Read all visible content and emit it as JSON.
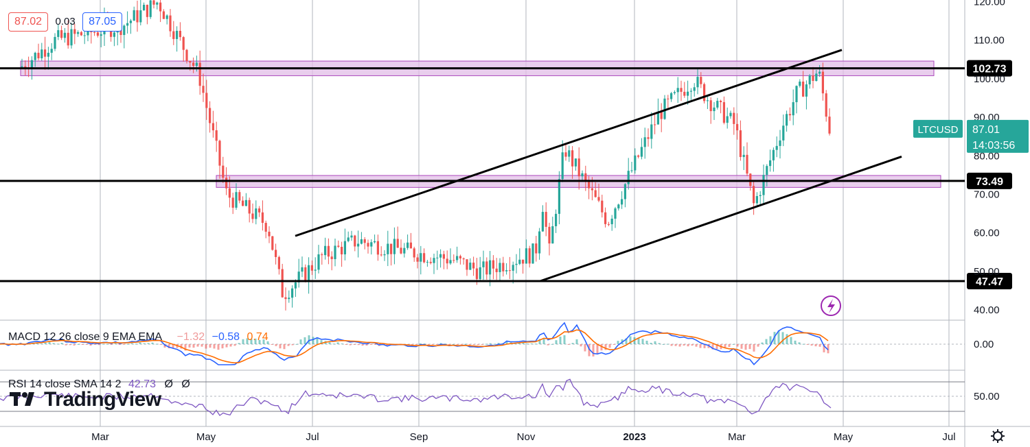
{
  "header": {
    "open_value": "87.02",
    "change_value": "0.03",
    "close_value": "87.05"
  },
  "colors": {
    "up": "#26a69a",
    "down": "#ef5350",
    "zone_fill": "#e1bee7",
    "zone_stroke": "#ab47bc",
    "macd": "#2962ff",
    "signal": "#ff6d00",
    "rsi": "#7e57c2",
    "price_label": "#26a69a"
  },
  "price_axis": {
    "ticks": [
      "120.00",
      "110.00",
      "100.00",
      "90.00",
      "80.00",
      "70.00",
      "60.00",
      "50.00",
      "40.00"
    ],
    "tick_values": [
      120,
      110,
      100,
      90,
      80,
      70,
      60,
      50,
      40
    ]
  },
  "time_axis": {
    "labels": [
      "Mar",
      "May",
      "Jul",
      "Sep",
      "Nov",
      "2023",
      "Mar",
      "May",
      "Jul"
    ]
  },
  "symbol_label": {
    "symbol": "LTCUSD",
    "price": "87.01",
    "countdown": "14:03:56"
  },
  "levels": [
    {
      "label": "102.73",
      "value": 102.73
    },
    {
      "label": "73.49",
      "value": 73.49
    },
    {
      "label": "47.47",
      "value": 47.47
    }
  ],
  "macd_pane": {
    "title": "MACD 12 26 close 9 EMA EMA",
    "hist_value": "−1.32",
    "macd_value": "−0.58",
    "signal_value": "0.74",
    "axis_label": "0.00"
  },
  "rsi_pane": {
    "title": "RSI 14 close SMA 14 2",
    "rsi_value": "42.73",
    "extra_1": "Ø",
    "extra_2": "Ø",
    "axis_label": "50.00"
  },
  "watermark": "TradingView",
  "chart_data": {
    "type": "candlestick",
    "symbol": "LTCUSD",
    "x_labels": [
      "Mar",
      "May",
      "Jul",
      "Sep",
      "Nov",
      "2023",
      "Mar",
      "May",
      "Jul"
    ],
    "ylim": [
      38,
      122
    ],
    "last_price": 87.01,
    "horizontal_levels": [
      102.73,
      73.49,
      47.47
    ],
    "zones": [
      {
        "from": 100.8,
        "to": 104.6
      },
      {
        "from": 71.8,
        "to": 74.9
      }
    ],
    "channel": {
      "upper": {
        "start": [
          "Jun",
          59.2
        ],
        "end": [
          "May 2023",
          107.5
        ]
      },
      "lower": {
        "start": [
          "Nov",
          47.5
        ],
        "end": [
          "Jun 2023",
          79.8
        ]
      }
    },
    "price_path": [
      [
        "Feb",
        103
      ],
      [
        "Mar",
        110
      ],
      [
        "Apr",
        114
      ],
      [
        "Apr",
        120
      ],
      [
        "May",
        101
      ],
      [
        "May",
        70
      ],
      [
        "Jun",
        62
      ],
      [
        "Jun",
        44
      ],
      [
        "Jul",
        54
      ],
      [
        "Aug",
        58
      ],
      [
        "Sep",
        55
      ],
      [
        "Oct",
        53
      ],
      [
        "Oct",
        50
      ],
      [
        "Nov",
        55
      ],
      [
        "Nov",
        68
      ],
      [
        "Nov",
        55
      ],
      [
        "Dec",
        82
      ],
      [
        "Dec",
        63
      ],
      [
        "2023",
        80
      ],
      [
        "Jan",
        91
      ],
      [
        "Feb",
        100
      ],
      [
        "Feb",
        95
      ],
      [
        "Mar",
        88
      ],
      [
        "Mar",
        67
      ],
      [
        "Apr",
        88
      ],
      [
        "Apr",
        96
      ],
      [
        "Apr",
        102
      ],
      [
        "Apr",
        87
      ]
    ]
  }
}
